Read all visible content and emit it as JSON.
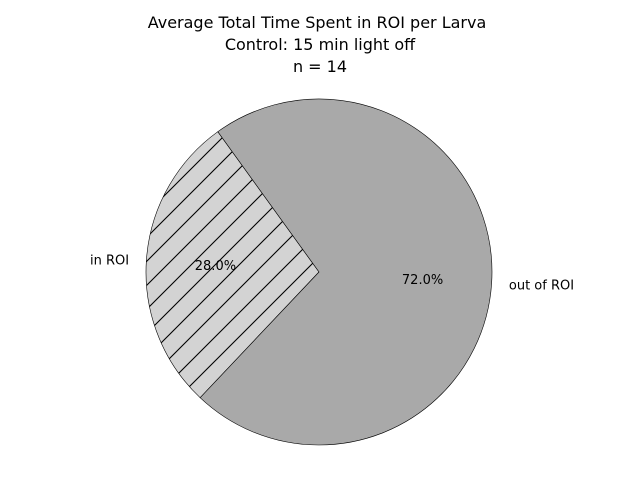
{
  "chart_data": {
    "type": "pie",
    "title": [
      "Average Total Time Spent in ROI per Larva",
      "Control: 15 min light off",
      "n = 14"
    ],
    "slices": [
      {
        "label": "in ROI",
        "value": 28.0,
        "pct_label": "28.0%",
        "color": "#d3d3d3",
        "hatch": "diagonal"
      },
      {
        "label": "out of ROI",
        "value": 72.0,
        "pct_label": "72.0%",
        "color": "#a9a9a9",
        "hatch": "none"
      }
    ],
    "start_angle_deg": 125.8,
    "counterclockwise": true,
    "edge_color": "#000000"
  }
}
